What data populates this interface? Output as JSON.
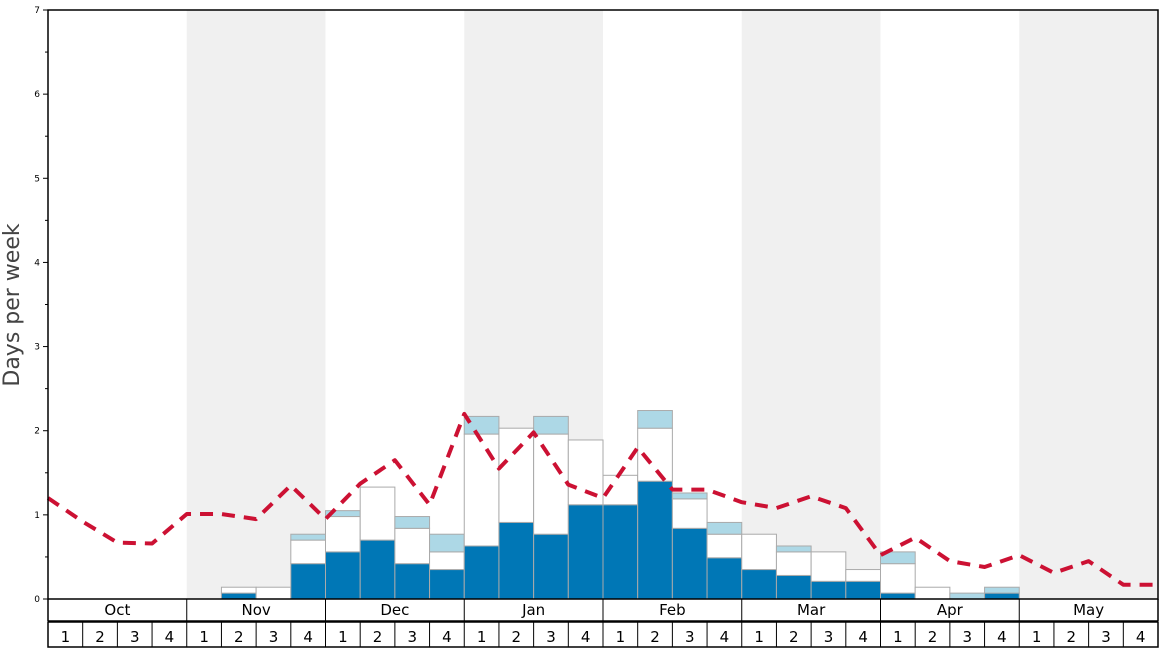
{
  "chart_data": {
    "type": "bar",
    "ylabel": "Days per week",
    "ylim": [
      0,
      7
    ],
    "yticks": [
      0,
      1,
      2,
      3,
      4,
      5,
      6,
      7
    ],
    "months": [
      "Oct",
      "Nov",
      "Dec",
      "Jan",
      "Feb",
      "Mar",
      "Apr",
      "May"
    ],
    "weeks": [
      "1",
      "2",
      "3",
      "4"
    ],
    "stack_order": [
      "dark",
      "white",
      "light"
    ],
    "colors": {
      "dark": "#0077b6",
      "white": "#ffffff",
      "light": "#add8e6",
      "bar_edge": "#aaaaaa",
      "line": "#cc1133",
      "shade": "#f0f0f0",
      "axis": "#000000"
    },
    "series": [
      {
        "key": "dark",
        "values": [
          0,
          0,
          0,
          0,
          0,
          0.07,
          0,
          0.42,
          0.56,
          0.7,
          0.42,
          0.35,
          0.63,
          0.91,
          0.77,
          1.12,
          1.12,
          1.4,
          0.84,
          0.49,
          0.35,
          0.28,
          0.21,
          0.21,
          0.07,
          0,
          0,
          0.07,
          0,
          0,
          0,
          0
        ]
      },
      {
        "key": "white",
        "values": [
          0,
          0,
          0,
          0,
          0,
          0.07,
          0.14,
          0.28,
          0.42,
          0.63,
          0.42,
          0.21,
          1.33,
          1.12,
          1.19,
          0.77,
          0.35,
          0.63,
          0.35,
          0.28,
          0.42,
          0.28,
          0.35,
          0.14,
          0.35,
          0.14,
          0,
          0,
          0,
          0,
          0,
          0
        ]
      },
      {
        "key": "light",
        "values": [
          0,
          0,
          0,
          0,
          0,
          0,
          0,
          0.07,
          0.07,
          0,
          0.14,
          0.21,
          0.21,
          0,
          0.21,
          0,
          0,
          0.21,
          0.07,
          0.14,
          0,
          0.07,
          0,
          0,
          0.14,
          0,
          0.07,
          0.07,
          0,
          0,
          0,
          0
        ]
      }
    ],
    "line": {
      "style": "dashed",
      "values": [
        1.2,
        0.92,
        0.67,
        0.66,
        1.01,
        1.01,
        0.95,
        1.35,
        0.95,
        1.37,
        1.65,
        1.12,
        2.2,
        1.55,
        1.98,
        1.36,
        1.2,
        1.8,
        1.3,
        1.3,
        1.15,
        1.08,
        1.22,
        1.08,
        0.52,
        0.73,
        0.45,
        0.38,
        0.52,
        0.31,
        0.45,
        0.17,
        0.17
      ]
    }
  }
}
